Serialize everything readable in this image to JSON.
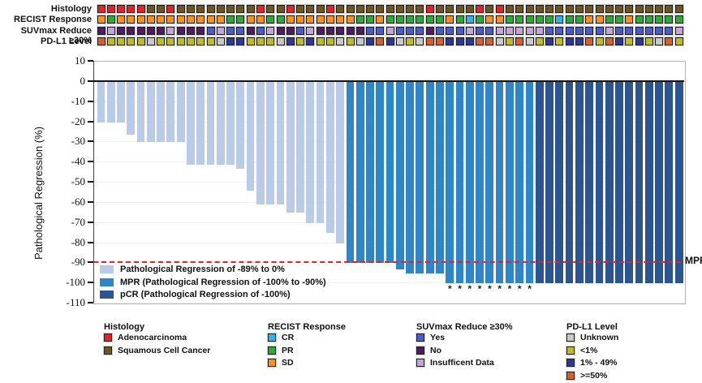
{
  "chart_data": {
    "type": "bar",
    "subtype": "waterfall-oncoplot",
    "ylabel": "Pathological Regression (%)",
    "ylim": [
      -110,
      10
    ],
    "yticks": [
      10,
      0,
      -10,
      -20,
      -30,
      -40,
      -50,
      -60,
      -70,
      -80,
      -90,
      -100,
      -110
    ],
    "grid": "faint-horizontal",
    "values": [
      -20,
      -20,
      -20,
      -26,
      -30,
      -30,
      -30,
      -30,
      -30,
      -41,
      -41,
      -41,
      -41,
      -41,
      -43,
      -54,
      -61,
      -61,
      -61,
      -65,
      -65,
      -70,
      -70,
      -75,
      -80,
      -90,
      -90,
      -90,
      -90,
      -90,
      -93,
      -95,
      -95,
      -95,
      -95,
      -100,
      -100,
      -100,
      -100,
      -100,
      -100,
      -100,
      -100,
      -100,
      -100,
      -100,
      -100,
      -100,
      -100,
      -100,
      -100,
      -100,
      -100,
      -100,
      -100,
      -100,
      -100,
      -100,
      -100
    ],
    "segments": {
      "light_end": 25,
      "mpr_end": 44,
      "total": 59
    },
    "starred_columns": [
      36,
      37,
      38,
      39,
      40,
      41,
      42,
      43,
      44
    ],
    "star_symbol": "*",
    "reference_line": {
      "value": -90,
      "label": "MPR",
      "color": "#e8202a",
      "style": "dashed"
    },
    "bar_colors": {
      "light": "#b9cbe7",
      "mpr": "#2e86c8",
      "pcr": "#2a5590"
    },
    "tracks": {
      "rows": [
        {
          "label": "Histology",
          "codes": [
            "A",
            "A",
            "A",
            "A",
            "A",
            "S",
            "S",
            "A",
            "S",
            "S",
            "S",
            "S",
            "S",
            "S",
            "S",
            "S",
            "A",
            "S",
            "S",
            "A",
            "S",
            "S",
            "S",
            "A",
            "S",
            "S",
            "S",
            "S",
            "S",
            "S",
            "S",
            "S",
            "S",
            "A",
            "S",
            "S",
            "S",
            "S",
            "A",
            "S",
            "A",
            "S",
            "S",
            "S",
            "S",
            "S",
            "S",
            "S",
            "S",
            "S",
            "S",
            "S",
            "S",
            "S",
            "S",
            "S",
            "S",
            "S",
            "S"
          ]
        },
        {
          "label": "RECIST Response",
          "codes": [
            "SD",
            "PR",
            "SD",
            "SD",
            "SD",
            "SD",
            "SD",
            "SD",
            "SD",
            "SD",
            "SD",
            "SD",
            "SD",
            "PR",
            "PR",
            "SD",
            "SD",
            "PR",
            "PR",
            "SD",
            "SD",
            "SD",
            "SD",
            "SD",
            "SD",
            "SD",
            "PR",
            "PR",
            "SD",
            "PR",
            "PR",
            "PR",
            "PR",
            "PR",
            "PR",
            "SD",
            "PR",
            "CR",
            "PR",
            "SD",
            "SD",
            "PR",
            "PR",
            "PR",
            "PR",
            "PR",
            "CR",
            "PR",
            "PR",
            "SD",
            "SD",
            "PR",
            "PR",
            "SD",
            "PR",
            "PR",
            "PR",
            "PR",
            "PR"
          ]
        },
        {
          "label": "SUVmax Reduce ≥30%",
          "codes": [
            "N",
            "I",
            "N",
            "N",
            "N",
            "N",
            "N",
            "I",
            "N",
            "N",
            "N",
            "Y",
            "I",
            "Y",
            "Y",
            "N",
            "Y",
            "I",
            "N",
            "N",
            "Y",
            "I",
            "N",
            "N",
            "N",
            "N",
            "N",
            "Y",
            "Y",
            "I",
            "Y",
            "Y",
            "Y",
            "N",
            "Y",
            "Y",
            "Y",
            "I",
            "Y",
            "Y",
            "I",
            "I",
            "I",
            "I",
            "I",
            "Y",
            "Y",
            "Y",
            "Y",
            "Y",
            "Y",
            "I",
            "Y",
            "Y",
            "Y",
            "Y",
            "Y",
            "Y",
            "I"
          ]
        },
        {
          "label": "PD-L1 Level",
          "codes": [
            "H",
            "L",
            "L",
            "L",
            "L",
            "U",
            "L",
            "L",
            "L",
            "L",
            "L",
            "L",
            "U",
            "M",
            "M",
            "L",
            "L",
            "L",
            "U",
            "M",
            "L",
            "M",
            "L",
            "L",
            "U",
            "L",
            "U",
            "M",
            "H",
            "M",
            "U",
            "L",
            "U",
            "H",
            "H",
            "M",
            "M",
            "M",
            "H",
            "H",
            "U",
            "L",
            "H",
            "U",
            "L",
            "M",
            "L",
            "M",
            "M",
            "H",
            "L",
            "H",
            "M",
            "L",
            "M",
            "L",
            "U",
            "H",
            "L"
          ]
        }
      ],
      "color_map": {
        "A": "#e02428",
        "S": "#6e571f",
        "CR": "#35b3e8",
        "PR": "#2fa93a",
        "SD": "#f6921e",
        "Y": "#4a5cc5",
        "N": "#4e1d5f",
        "I": "#c4a6d9",
        "U": "#c9c9c9",
        "L": "#bcbd22",
        "M": "#2c3a94",
        "H": "#d2622a"
      }
    }
  },
  "plot_legend": {
    "items": [
      {
        "label": "Pathological Regression of -89% to 0%",
        "color": "#b9cbe7"
      },
      {
        "label": "MPR (Pathological Regression of -100% to -90%)",
        "color": "#2e86c8"
      },
      {
        "label": "pCR (Pathological Regression of -100%)",
        "color": "#2a5590"
      }
    ]
  },
  "mpr_label": "MPR",
  "bottom_legend": {
    "groups": [
      {
        "title": "Histology",
        "items": [
          {
            "label": "Adenocarcinoma",
            "color": "#e02428"
          },
          {
            "label": "Squamous Cell Cancer",
            "color": "#6e571f"
          }
        ]
      },
      {
        "title": "RECIST Response",
        "items": [
          {
            "label": "CR",
            "color": "#35b3e8"
          },
          {
            "label": "PR",
            "color": "#2fa93a"
          },
          {
            "label": "SD",
            "color": "#f6921e"
          }
        ]
      },
      {
        "title": "SUVmax Reduce ≥30%",
        "items": [
          {
            "label": "Yes",
            "color": "#4a5cc5"
          },
          {
            "label": "No",
            "color": "#4e1d5f"
          },
          {
            "label": "Insufficent Data",
            "color": "#c4a6d9"
          }
        ]
      },
      {
        "title": "PD-L1 Level",
        "items": [
          {
            "label": "Unknown",
            "color": "#c9c9c9"
          },
          {
            "label": "<1%",
            "color": "#bcbd22"
          },
          {
            "label": "1% - 49%",
            "color": "#2c3a94"
          },
          {
            "label": ">=50%",
            "color": "#d2622a"
          }
        ]
      }
    ]
  }
}
